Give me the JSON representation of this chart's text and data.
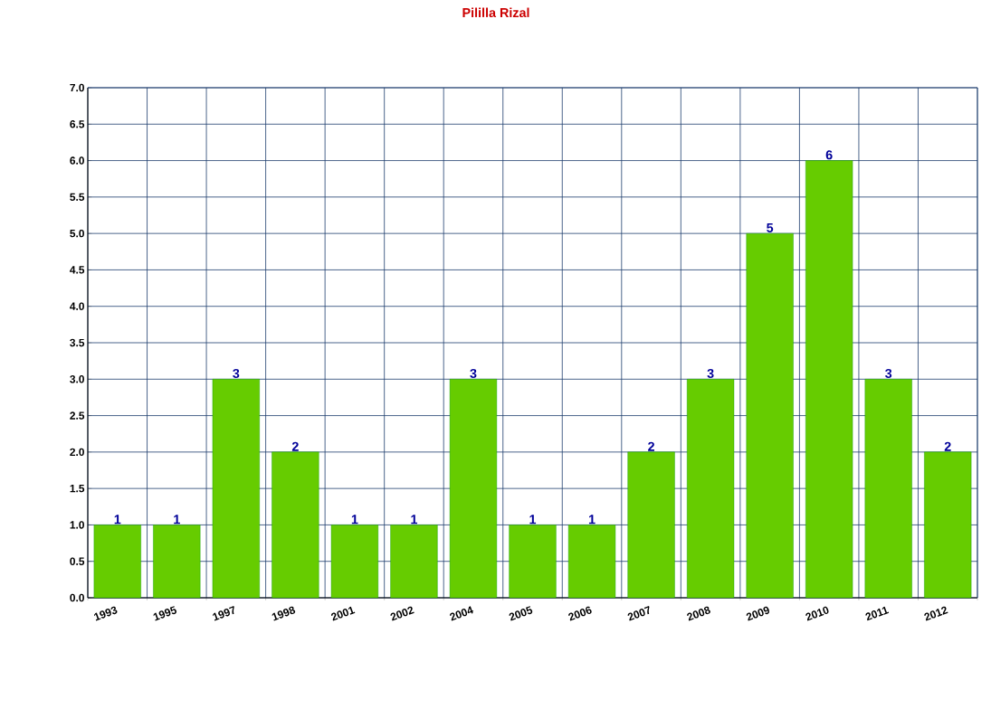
{
  "chart_data": {
    "type": "bar",
    "title": "Pililla Rizal",
    "categories": [
      "1993",
      "1995",
      "1997",
      "1998",
      "2001",
      "2002",
      "2004",
      "2005",
      "2006",
      "2007",
      "2008",
      "2009",
      "2010",
      "2011",
      "2012"
    ],
    "values": [
      1,
      1,
      3,
      2,
      1,
      1,
      3,
      1,
      1,
      2,
      3,
      5,
      6,
      3,
      2
    ],
    "color": "#66cc00",
    "ylim": [
      0,
      7
    ],
    "yticks": [
      {
        "value": 0,
        "label": "0.0"
      },
      {
        "value": 0.5,
        "label": "0.5"
      },
      {
        "value": 1,
        "label": "1.0"
      },
      {
        "value": 1.5,
        "label": "1.5"
      },
      {
        "value": 2,
        "label": "2.0"
      },
      {
        "value": 2.5,
        "label": "2.5"
      },
      {
        "value": 3,
        "label": "3.0"
      },
      {
        "value": 3.5,
        "label": "3.5"
      },
      {
        "value": 4,
        "label": "4.0"
      },
      {
        "value": 4.5,
        "label": "4.5"
      },
      {
        "value": 5,
        "label": "5.0"
      },
      {
        "value": 5.5,
        "label": "5.5"
      },
      {
        "value": 6,
        "label": "6.0"
      },
      {
        "value": 6.5,
        "label": "6.5"
      },
      {
        "value": 7,
        "label": "7.0"
      }
    ],
    "grid": true,
    "data_labels": true
  }
}
